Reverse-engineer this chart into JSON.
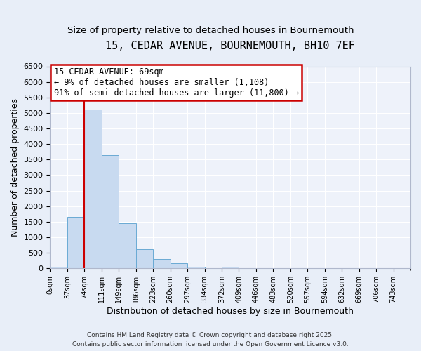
{
  "title": "15, CEDAR AVENUE, BOURNEMOUTH, BH10 7EF",
  "subtitle": "Size of property relative to detached houses in Bournemouth",
  "xlabel": "Distribution of detached houses by size in Bournemouth",
  "ylabel": "Number of detached properties",
  "bin_labels": [
    "0sqm",
    "37sqm",
    "74sqm",
    "111sqm",
    "149sqm",
    "186sqm",
    "223sqm",
    "260sqm",
    "297sqm",
    "334sqm",
    "372sqm",
    "409sqm",
    "446sqm",
    "483sqm",
    "520sqm",
    "557sqm",
    "594sqm",
    "632sqm",
    "669sqm",
    "706sqm",
    "743sqm"
  ],
  "bar_heights": [
    50,
    1650,
    5100,
    3650,
    1440,
    620,
    310,
    155,
    60,
    0,
    55,
    0,
    0,
    0,
    0,
    0,
    0,
    0,
    0,
    0,
    0
  ],
  "bar_color": "#c8daf0",
  "bar_edge_color": "#6aaad4",
  "ylim": [
    0,
    6500
  ],
  "yticks": [
    0,
    500,
    1000,
    1500,
    2000,
    2500,
    3000,
    3500,
    4000,
    4500,
    5000,
    5500,
    6000,
    6500
  ],
  "property_line_x": 2.0,
  "annotation_title": "15 CEDAR AVENUE: 69sqm",
  "annotation_line1": "← 9% of detached houses are smaller (1,108)",
  "annotation_line2": "91% of semi-detached houses are larger (11,800) →",
  "annotation_box_color": "#ffffff",
  "annotation_box_edge": "#cc0000",
  "vline_color": "#cc0000",
  "footer_line1": "Contains HM Land Registry data © Crown copyright and database right 2025.",
  "footer_line2": "Contains public sector information licensed under the Open Government Licence v3.0.",
  "bg_color": "#e8eef8",
  "plot_bg_color": "#eef2fa",
  "grid_color": "#ffffff",
  "title_fontsize": 11,
  "subtitle_fontsize": 9.5,
  "annotation_fontsize": 8.5
}
